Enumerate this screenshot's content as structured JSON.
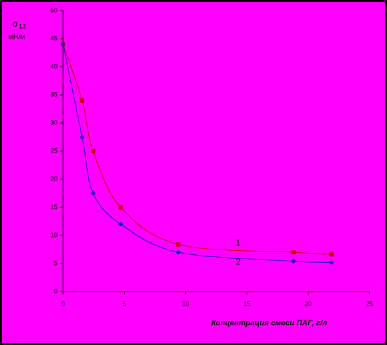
{
  "chart_data": {
    "type": "line",
    "y_label_symbol": "σ",
    "y_label_subscript": "12",
    "y_label_units": "мН/м",
    "x_label": "Концентрация смеси ПАГ, г/л",
    "xlim": [
      0,
      25
    ],
    "xticks": [
      0,
      5,
      10,
      15,
      20,
      25
    ],
    "ylim": [
      0,
      50
    ],
    "yticks": [
      0,
      5,
      10,
      15,
      20,
      25,
      30,
      35,
      40,
      45,
      50
    ],
    "grid": false,
    "smooth": true,
    "series": [
      {
        "name": "1",
        "color": "#c00000",
        "marker": "square",
        "x": [
          0,
          1.55,
          2.45,
          4.7,
          9.4,
          18.8,
          21.9
        ],
        "values": [
          44,
          34,
          25,
          15,
          8.4,
          7,
          6.6
        ]
      },
      {
        "name": "2",
        "color": "#1010c0",
        "marker": "diamond",
        "x": [
          0,
          1.55,
          2.45,
          4.7,
          9.4,
          18.8,
          21.9
        ],
        "values": [
          44,
          27.5,
          17.5,
          12,
          7,
          5.4,
          5.2
        ]
      }
    ]
  }
}
